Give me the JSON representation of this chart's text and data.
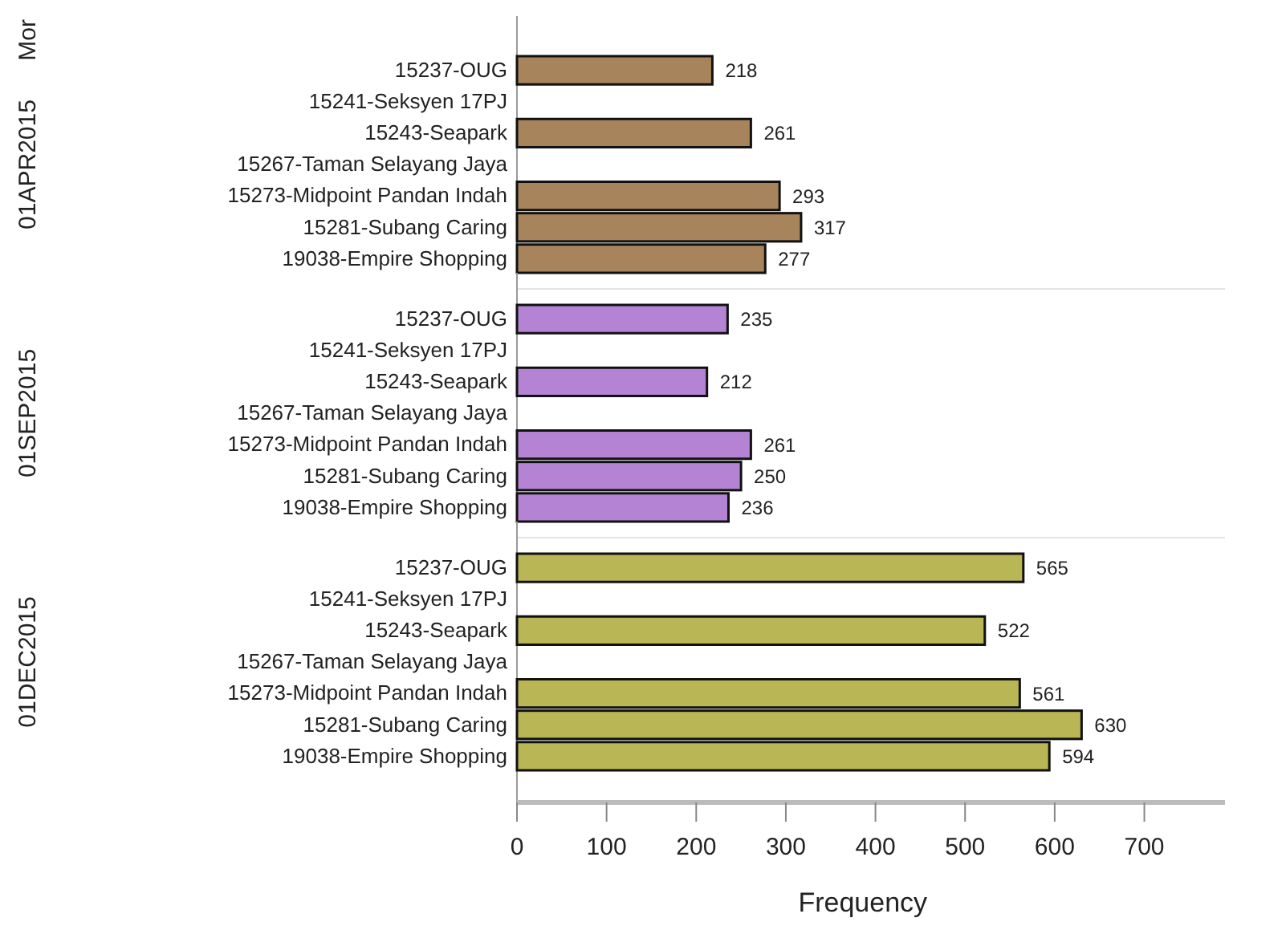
{
  "chart_data": [
    {
      "type": "bar",
      "orientation": "horizontal",
      "ylabel": "01APR2015",
      "annotations": [
        "Mor"
      ],
      "categories": [
        "15237-OUG",
        "15241-Seksyen 17PJ",
        "15243-Seapark",
        "15267-Taman Selayang Jaya",
        "15273-Midpoint Pandan Indah",
        "15281-Subang Caring",
        "19038-Empire Shopping"
      ],
      "values": [
        218,
        null,
        261,
        null,
        293,
        317,
        277
      ],
      "color": "#a8845c",
      "data_labels": true,
      "xlim": [
        0,
        790
      ],
      "tick_labels": "y"
    },
    {
      "type": "bar",
      "orientation": "horizontal",
      "ylabel": "01SEP2015",
      "categories": [
        "15237-OUG",
        "15241-Seksyen 17PJ",
        "15243-Seapark",
        "15267-Taman Selayang Jaya",
        "15273-Midpoint Pandan Indah",
        "15281-Subang Caring",
        "19038-Empire Shopping"
      ],
      "values": [
        235,
        null,
        212,
        null,
        261,
        250,
        236
      ],
      "color": "#b483d4",
      "data_labels": true,
      "xlim": [
        0,
        790
      ],
      "tick_labels": "y"
    },
    {
      "type": "bar",
      "orientation": "horizontal",
      "ylabel": "01DEC2015",
      "xlabel": "Frequency",
      "categories": [
        "15237-OUG",
        "15241-Seksyen 17PJ",
        "15243-Seapark",
        "15267-Taman Selayang Jaya",
        "15273-Midpoint Pandan Indah",
        "15281-Subang Caring",
        "19038-Empire Shopping"
      ],
      "values": [
        565,
        null,
        522,
        null,
        561,
        630,
        594
      ],
      "color": "#b8b655",
      "data_labels": true,
      "xlim": [
        0,
        790
      ],
      "xticks": [
        0,
        100,
        200,
        300,
        400,
        500,
        600,
        700
      ]
    }
  ]
}
